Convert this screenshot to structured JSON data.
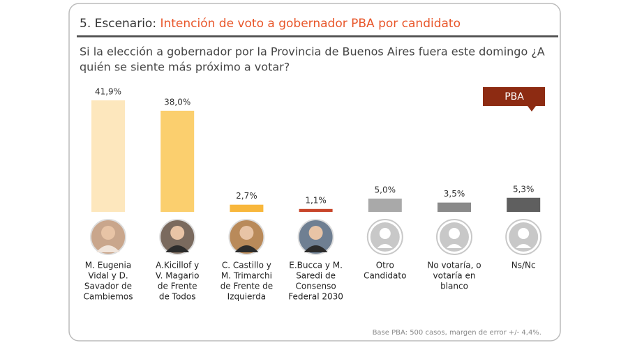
{
  "chart_data": {
    "type": "bar",
    "title_prefix": "5. Escenario:",
    "title": "Intención de voto a gobernador PBA por candidato",
    "subtitle": [
      "Si la elección a gobernador por la Provincia de Buenos Aires fuera este domingo ¿A",
      "quién se siente más próximo a votar?"
    ],
    "badge": "PBA",
    "categories": [
      [
        "M. Eugenia",
        "Vidal y  D.",
        "Savador de",
        "Cambiemos"
      ],
      [
        "A.Kicillof y",
        "V. Magario",
        "de Frente",
        "de Todos"
      ],
      [
        "C. Castillo y",
        "M. Trimarchi",
        "de Frente de",
        "Izquierda"
      ],
      [
        "E.Bucca y M.",
        "Saredi de",
        "Consenso",
        "Federal 2030"
      ],
      [
        "Otro",
        "Candidato"
      ],
      [
        "No votaría, o",
        "votaría en",
        "blanco"
      ],
      [
        "Ns/Nc"
      ]
    ],
    "values": [
      41.9,
      38.0,
      2.7,
      1.1,
      5.0,
      3.5,
      5.3
    ],
    "value_labels": [
      "41,9%",
      "38,0%",
      "2,7%",
      "1,1%",
      "5,0%",
      "3,5%",
      "5,3%"
    ],
    "colors": [
      "#fde7bd",
      "#fbcf6e",
      "#f8b73c",
      "#c8452a",
      "#a9a9a9",
      "#8a8a8a",
      "#5f5f5f"
    ],
    "note": "Base PBA: 500 casos, margen de error +/- 4,4%."
  }
}
